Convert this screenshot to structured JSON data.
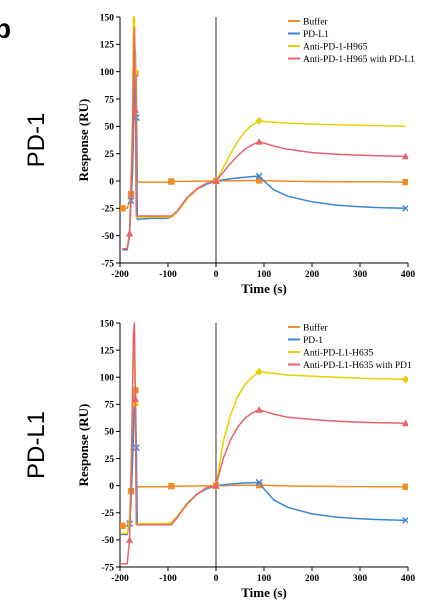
{
  "panel_letter": "b",
  "chart_data": [
    {
      "type": "line",
      "row_label": "PD-1",
      "xlabel": "Time (s)",
      "ylabel": "Response (RU)",
      "xlim": [
        -200,
        400
      ],
      "ylim": [
        -75,
        150
      ],
      "xticks": [
        -200,
        -100,
        0,
        100,
        200,
        300,
        400
      ],
      "yticks": [
        -75,
        -50,
        -25,
        0,
        25,
        50,
        75,
        100,
        125,
        150
      ],
      "grid": false,
      "legend_position": "top-right",
      "series": [
        {
          "name": "Buffer",
          "color": "#F28C28",
          "marker": "square",
          "points": [
            [
              -195,
              -25
            ],
            [
              -185,
              -25
            ],
            [
              -180,
              -18
            ],
            [
              -177,
              -10
            ],
            [
              -174,
              5
            ],
            [
              -171,
              60
            ],
            [
              -168,
              100
            ],
            [
              -166,
              98
            ],
            [
              -164,
              -1
            ],
            [
              -100,
              -1
            ],
            [
              -95,
              -0.5
            ],
            [
              -50,
              -0.3
            ],
            [
              0,
              0
            ],
            [
              45,
              0.2
            ],
            [
              90,
              0.5
            ],
            [
              150,
              -0.2
            ],
            [
              250,
              -0.6
            ],
            [
              350,
              -0.8
            ],
            [
              395,
              -1
            ]
          ],
          "marker_points": [
            [
              -195,
              -25
            ],
            [
              -177,
              -12
            ],
            [
              -168,
              98
            ],
            [
              -93,
              -0.5
            ],
            [
              0,
              0
            ],
            [
              90,
              0.5
            ],
            [
              395,
              -1
            ]
          ]
        },
        {
          "name": "PD-L1",
          "color": "#3A86D8",
          "marker": "x",
          "points": [
            [
              -195,
              -63
            ],
            [
              -185,
              -63
            ],
            [
              -180,
              -50
            ],
            [
              -177,
              -20
            ],
            [
              -174,
              10
            ],
            [
              -171,
              80
            ],
            [
              -168,
              120
            ],
            [
              -166,
              58
            ],
            [
              -164,
              -35
            ],
            [
              -130,
              -34
            ],
            [
              -100,
              -34
            ],
            [
              -93,
              -33
            ],
            [
              -80,
              -28
            ],
            [
              -60,
              -16
            ],
            [
              -40,
              -8
            ],
            [
              -20,
              -3
            ],
            [
              0,
              0
            ],
            [
              30,
              2
            ],
            [
              60,
              3.5
            ],
            [
              90,
              4.5
            ],
            [
              100,
              0
            ],
            [
              120,
              -8
            ],
            [
              150,
              -14
            ],
            [
              200,
              -19
            ],
            [
              250,
              -22
            ],
            [
              300,
              -23.5
            ],
            [
              350,
              -24.5
            ],
            [
              395,
              -25
            ]
          ],
          "marker_points": [
            [
              -177,
              -18
            ],
            [
              -166,
              58
            ],
            [
              90,
              4.5
            ],
            [
              395,
              -25
            ]
          ]
        },
        {
          "name": "Anti-PD-1-H965",
          "color": "#E8D000",
          "marker": "diamond",
          "points": [
            [
              -195,
              -62
            ],
            [
              -185,
              -62
            ],
            [
              -180,
              -45
            ],
            [
              -177,
              0
            ],
            [
              -174,
              60
            ],
            [
              -172,
              150
            ],
            [
              -170,
              150
            ],
            [
              -168,
              100
            ],
            [
              -166,
              -33
            ],
            [
              -120,
              -33
            ],
            [
              -100,
              -33
            ],
            [
              -93,
              -33
            ],
            [
              -80,
              -28
            ],
            [
              -60,
              -16
            ],
            [
              -40,
              -8
            ],
            [
              -20,
              -2
            ],
            [
              0,
              0
            ],
            [
              15,
              12
            ],
            [
              30,
              25
            ],
            [
              45,
              36
            ],
            [
              60,
              45
            ],
            [
              75,
              51
            ],
            [
              90,
              55
            ],
            [
              110,
              54
            ],
            [
              150,
              53
            ],
            [
              200,
              52
            ],
            [
              250,
              51.5
            ],
            [
              300,
              51
            ],
            [
              350,
              50.5
            ],
            [
              395,
              50
            ]
          ],
          "marker_points": [
            [
              -168,
              100
            ],
            [
              0,
              0
            ],
            [
              90,
              55
            ]
          ]
        },
        {
          "name": "Anti-PD-1-H965 with PD-L1",
          "color": "#E8636B",
          "marker": "triangle",
          "points": [
            [
              -195,
              -62
            ],
            [
              -185,
              -62
            ],
            [
              -180,
              -48
            ],
            [
              -177,
              -10
            ],
            [
              -174,
              40
            ],
            [
              -172,
              90
            ],
            [
              -170,
              140
            ],
            [
              -168,
              65
            ],
            [
              -166,
              -32
            ],
            [
              -120,
              -32
            ],
            [
              -100,
              -32
            ],
            [
              -93,
              -32
            ],
            [
              -80,
              -27
            ],
            [
              -60,
              -15
            ],
            [
              -40,
              -7
            ],
            [
              -20,
              -2
            ],
            [
              0,
              0
            ],
            [
              15,
              8
            ],
            [
              30,
              16
            ],
            [
              45,
              23
            ],
            [
              60,
              29
            ],
            [
              75,
              33
            ],
            [
              90,
              36
            ],
            [
              120,
              32
            ],
            [
              150,
              29
            ],
            [
              200,
              26
            ],
            [
              250,
              24.5
            ],
            [
              300,
              23.5
            ],
            [
              350,
              23
            ],
            [
              395,
              22.5
            ]
          ],
          "marker_points": [
            [
              -180,
              -48
            ],
            [
              -168,
              65
            ],
            [
              0,
              0
            ],
            [
              90,
              36
            ],
            [
              395,
              22.5
            ]
          ]
        }
      ]
    },
    {
      "type": "line",
      "row_label": "PD-L1",
      "xlabel": "Time (s)",
      "ylabel": "Response (RU)",
      "xlim": [
        -200,
        400
      ],
      "ylim": [
        -75,
        150
      ],
      "xticks": [
        -200,
        -100,
        0,
        100,
        200,
        300,
        400
      ],
      "yticks": [
        -75,
        -50,
        -25,
        0,
        25,
        50,
        75,
        100,
        125,
        150
      ],
      "grid": false,
      "legend_position": "top-right",
      "series": [
        {
          "name": "Buffer",
          "color": "#F28C28",
          "marker": "square",
          "points": [
            [
              -198,
              -37
            ],
            [
              -185,
              -37
            ],
            [
              -180,
              -30
            ],
            [
              -177,
              -5
            ],
            [
              -174,
              60
            ],
            [
              -171,
              90
            ],
            [
              -168,
              88
            ],
            [
              -166,
              -1
            ],
            [
              -100,
              -1
            ],
            [
              -95,
              -0.5
            ],
            [
              -50,
              -0.3
            ],
            [
              0,
              0
            ],
            [
              45,
              0.2
            ],
            [
              90,
              0.5
            ],
            [
              150,
              -0.3
            ],
            [
              250,
              -0.8
            ],
            [
              350,
              -1
            ],
            [
              395,
              -1
            ]
          ],
          "marker_points": [
            [
              -195,
              -37
            ],
            [
              -177,
              -5
            ],
            [
              -168,
              88
            ],
            [
              -93,
              -0.5
            ],
            [
              0,
              0
            ],
            [
              90,
              0.5
            ],
            [
              395,
              -1
            ]
          ]
        },
        {
          "name": "PD-1",
          "color": "#3A86D8",
          "marker": "x",
          "points": [
            [
              -198,
              -45
            ],
            [
              -185,
              -45
            ],
            [
              -180,
              -35
            ],
            [
              -177,
              -15
            ],
            [
              -174,
              20
            ],
            [
              -171,
              60
            ],
            [
              -168,
              90
            ],
            [
              -166,
              35
            ],
            [
              -164,
              -36
            ],
            [
              -130,
              -35
            ],
            [
              -100,
              -35
            ],
            [
              -93,
              -34
            ],
            [
              -80,
              -28
            ],
            [
              -60,
              -16
            ],
            [
              -40,
              -8
            ],
            [
              -20,
              -3
            ],
            [
              0,
              0
            ],
            [
              30,
              1.5
            ],
            [
              60,
              2.5
            ],
            [
              90,
              3
            ],
            [
              100,
              -3
            ],
            [
              120,
              -13
            ],
            [
              150,
              -20
            ],
            [
              200,
              -26
            ],
            [
              250,
              -29
            ],
            [
              300,
              -30.5
            ],
            [
              350,
              -31.5
            ],
            [
              395,
              -32
            ]
          ],
          "marker_points": [
            [
              -180,
              -35
            ],
            [
              -166,
              35
            ],
            [
              90,
              3
            ],
            [
              395,
              -32
            ]
          ]
        },
        {
          "name": "Anti-PD-L1-H635",
          "color": "#E8D000",
          "marker": "diamond",
          "points": [
            [
              -198,
              -44
            ],
            [
              -185,
              -44
            ],
            [
              -180,
              -30
            ],
            [
              -177,
              10
            ],
            [
              -174,
              80
            ],
            [
              -172,
              130
            ],
            [
              -170,
              120
            ],
            [
              -168,
              75
            ],
            [
              -166,
              -35
            ],
            [
              -120,
              -35
            ],
            [
              -100,
              -35
            ],
            [
              -93,
              -34
            ],
            [
              -80,
              -28
            ],
            [
              -60,
              -16
            ],
            [
              -40,
              -8
            ],
            [
              -20,
              -2
            ],
            [
              0,
              0
            ],
            [
              15,
              40
            ],
            [
              30,
              65
            ],
            [
              45,
              82
            ],
            [
              60,
              93
            ],
            [
              75,
              100
            ],
            [
              90,
              105
            ],
            [
              110,
              104
            ],
            [
              150,
              102
            ],
            [
              200,
              101
            ],
            [
              250,
              100
            ],
            [
              300,
              99
            ],
            [
              350,
              98.5
            ],
            [
              395,
              98
            ]
          ],
          "marker_points": [
            [
              -168,
              75
            ],
            [
              0,
              0
            ],
            [
              90,
              105
            ],
            [
              395,
              98
            ]
          ]
        },
        {
          "name": "Anti-PD-L1-H635 with PD1",
          "color": "#E8636B",
          "marker": "triangle",
          "points": [
            [
              -198,
              -72
            ],
            [
              -185,
              -72
            ],
            [
              -180,
              -50
            ],
            [
              -177,
              0
            ],
            [
              -174,
              80
            ],
            [
              -172,
              140
            ],
            [
              -170,
              150
            ],
            [
              -168,
              80
            ],
            [
              -166,
              -36
            ],
            [
              -120,
              -36
            ],
            [
              -100,
              -36
            ],
            [
              -93,
              -36
            ],
            [
              -80,
              -29
            ],
            [
              -60,
              -17
            ],
            [
              -40,
              -8
            ],
            [
              -20,
              -2
            ],
            [
              0,
              0
            ],
            [
              15,
              25
            ],
            [
              30,
              42
            ],
            [
              45,
              54
            ],
            [
              60,
              62
            ],
            [
              75,
              67
            ],
            [
              90,
              70
            ],
            [
              120,
              66
            ],
            [
              150,
              63
            ],
            [
              200,
              61
            ],
            [
              250,
              59.5
            ],
            [
              300,
              58.5
            ],
            [
              350,
              58
            ],
            [
              395,
              57.5
            ]
          ],
          "marker_points": [
            [
              -180,
              -50
            ],
            [
              -168,
              80
            ],
            [
              0,
              0
            ],
            [
              90,
              70
            ],
            [
              395,
              57.5
            ]
          ]
        }
      ]
    }
  ]
}
